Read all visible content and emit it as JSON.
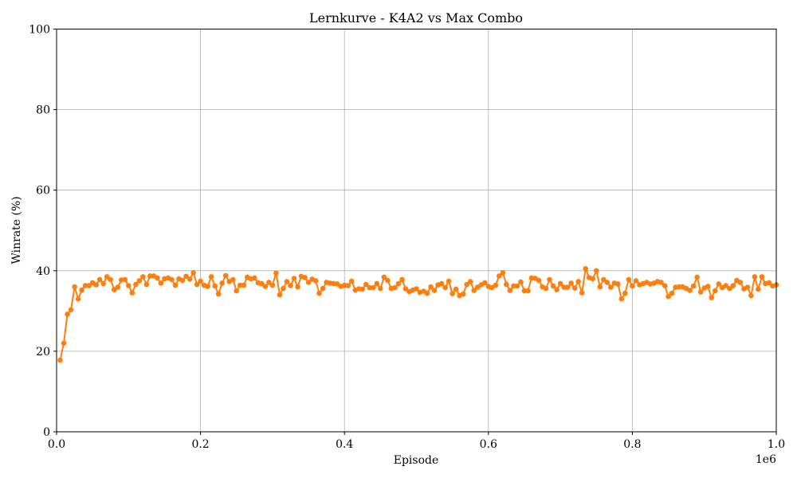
{
  "chart_data": {
    "type": "line",
    "title": "Lernkurve - K4A2 vs Max Combo",
    "xlabel": "Episode",
    "ylabel": "Winrate (%)",
    "x_multiplier_label": "1e6",
    "xlim": [
      0,
      1000000
    ],
    "ylim": [
      0,
      100
    ],
    "x_tick_labels": [
      "0.0",
      "0.2",
      "0.4",
      "0.6",
      "0.8",
      "1.0"
    ],
    "y_tick_labels": [
      "0",
      "20",
      "40",
      "60",
      "80",
      "100"
    ],
    "grid": true,
    "legend": "none",
    "series": [
      {
        "color": "#ff7f0e",
        "marker": "circle",
        "x_start": 5000,
        "x_step": 5000,
        "values": [
          17.8,
          22.0,
          29.2,
          30.3,
          36.0,
          33.0,
          35.2,
          36.3,
          36.3,
          37.0,
          36.5,
          37.8,
          36.8,
          38.5,
          37.8,
          35.3,
          35.9,
          37.7,
          37.8,
          36.3,
          34.5,
          36.6,
          37.5,
          38.5,
          36.6,
          38.7,
          38.7,
          38.2,
          36.9,
          38.0,
          38.2,
          37.8,
          36.4,
          38.0,
          37.6,
          38.6,
          37.9,
          39.5,
          36.6,
          37.4,
          36.4,
          36.1,
          38.5,
          36.2,
          34.2,
          36.9,
          38.8,
          37.3,
          37.8,
          35.0,
          36.4,
          36.4,
          38.4,
          38.0,
          38.2,
          37.0,
          36.8,
          36.1,
          37.1,
          36.4,
          39.4,
          34.0,
          35.6,
          37.3,
          36.3,
          38.1,
          36.0,
          38.6,
          38.3,
          37.1,
          37.9,
          37.5,
          34.4,
          35.6,
          37.1,
          36.9,
          36.8,
          36.7,
          36.1,
          36.4,
          36.3,
          37.4,
          35.2,
          35.5,
          35.4,
          36.6,
          35.8,
          35.8,
          36.8,
          35.6,
          38.4,
          37.6,
          35.6,
          35.8,
          36.8,
          37.8,
          35.5,
          34.8,
          35.2,
          35.5,
          34.6,
          34.9,
          34.4,
          36.0,
          35.1,
          36.5,
          36.8,
          35.8,
          37.4,
          34.3,
          35.4,
          33.8,
          34.2,
          36.6,
          37.3,
          35.1,
          35.9,
          36.5,
          37.0,
          36.1,
          35.8,
          36.4,
          38.7,
          39.5,
          36.6,
          35.1,
          36.2,
          36.2,
          37.2,
          35.0,
          35.0,
          38.2,
          38.1,
          37.6,
          36.0,
          35.6,
          37.8,
          36.2,
          35.3,
          36.8,
          35.9,
          35.9,
          36.9,
          35.7,
          37.3,
          34.5,
          40.5,
          38.3,
          38.0,
          40.0,
          36.0,
          37.8,
          37.1,
          35.9,
          36.9,
          36.7,
          33.0,
          34.4,
          37.8,
          36.2,
          37.5,
          36.5,
          36.8,
          37.1,
          36.7,
          36.9,
          37.3,
          37.1,
          36.3,
          33.6,
          34.4,
          35.9,
          36.0,
          36.0,
          35.6,
          35.1,
          36.2,
          38.4,
          34.7,
          35.7,
          36.1,
          33.3,
          35.0,
          36.7,
          35.8,
          36.3,
          35.6,
          36.3,
          37.6,
          37.1,
          35.5,
          35.9,
          33.8,
          38.5,
          35.4,
          38.5,
          36.8,
          37.0,
          36.2,
          36.5
        ]
      }
    ]
  }
}
